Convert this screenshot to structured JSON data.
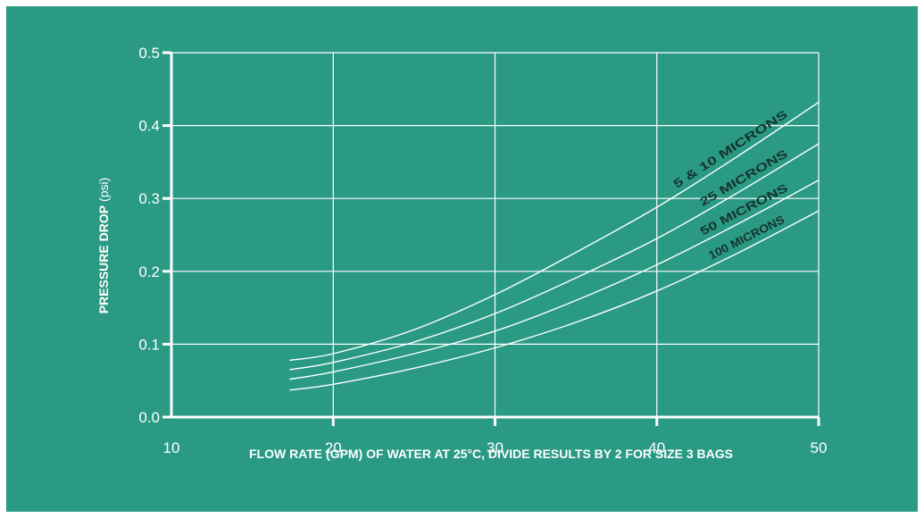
{
  "colors": {
    "background": "#2a9a85",
    "axis": "#ffffff",
    "grid": "#ffffff",
    "curve": "#ffffff",
    "label_text": "#17332e"
  },
  "chart_data": {
    "type": "line",
    "title": "",
    "xlabel": "FLOW RATE (GPM) OF WATER AT 25°C, DIVIDE RESULTS BY 2 FOR SIZE 3 BAGS",
    "ylabel_bold": "PRESSURE DROP",
    "ylabel_unit": "(psi)",
    "xlim": [
      10,
      50
    ],
    "ylim": [
      0.0,
      0.5
    ],
    "x_ticks": [
      10,
      20,
      30,
      40,
      50
    ],
    "x_tick_labels": [
      "10",
      "20",
      "30",
      "40",
      "50"
    ],
    "y_ticks": [
      0.0,
      0.1,
      0.2,
      0.3,
      0.4,
      0.5
    ],
    "y_tick_labels": [
      "0.0",
      "0.1",
      "0.2",
      "0.3",
      "0.4",
      "0.5"
    ],
    "grid": true,
    "series": [
      {
        "name": "5 & 10 MICRONS",
        "x": [
          17.3,
          20,
          25,
          30,
          35,
          40,
          45,
          50
        ],
        "y": [
          0.078,
          0.087,
          0.12,
          0.168,
          0.226,
          0.288,
          0.358,
          0.432
        ]
      },
      {
        "name": "25 MICRONS",
        "x": [
          17.3,
          20,
          25,
          30,
          35,
          40,
          45,
          50
        ],
        "y": [
          0.065,
          0.075,
          0.103,
          0.142,
          0.191,
          0.245,
          0.308,
          0.375
        ]
      },
      {
        "name": "50 MICRONS",
        "x": [
          17.3,
          20,
          25,
          30,
          35,
          40,
          45,
          50
        ],
        "y": [
          0.052,
          0.062,
          0.087,
          0.118,
          0.16,
          0.209,
          0.265,
          0.325
        ]
      },
      {
        "name": "100 MICRONS",
        "x": [
          17.3,
          20,
          25,
          30,
          35,
          40,
          45,
          50
        ],
        "y": [
          0.037,
          0.045,
          0.067,
          0.095,
          0.13,
          0.173,
          0.225,
          0.283
        ]
      }
    ]
  }
}
